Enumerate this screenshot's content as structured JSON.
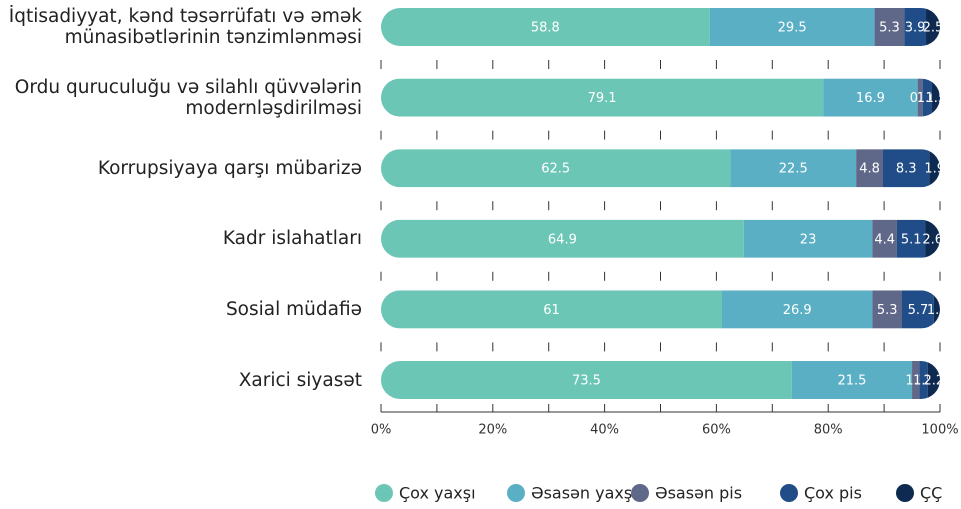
{
  "chart_data": {
    "type": "stacked-bar-horizontal",
    "categories": [
      "İqtisadiyyat, kənd təsərrüfatı və əmək münasibətlərinin tənzimlənməsi",
      "Ordu quruculuğu və silahlı qüvvələrin modernləşdirilməsi",
      "Korrupsiyaya qarşı mübarizə",
      "Kadr islahatları",
      "Sosial müdafiə",
      "Xarici siyasət"
    ],
    "series": [
      {
        "name": "Çox yaxşı",
        "color": "#6cc6b6",
        "values": [
          58.8,
          79.1,
          62.5,
          64.9,
          61,
          73.5
        ]
      },
      {
        "name": "Əsasən yaxşı",
        "color": "#5aafc5",
        "values": [
          29.5,
          16.9,
          22.5,
          23,
          26.9,
          21.5
        ]
      },
      {
        "name": "Əsasən pis",
        "color": "#5f6889",
        "values": [
          5.3,
          0.9,
          4.8,
          4.4,
          5.3,
          1.3
        ]
      },
      {
        "name": "Çox pis",
        "color": "#204d88",
        "values": [
          3.9,
          1.6,
          8.3,
          5.1,
          5.7,
          1.5
        ]
      },
      {
        "name": "ÇÇ",
        "color": "#0f2a51",
        "values": [
          2.5,
          1.5,
          1.9,
          2.6,
          1.2,
          2.2
        ]
      }
    ],
    "xlim": [
      0,
      100
    ],
    "xticks": [
      {
        "value": 0,
        "label": "0%"
      },
      {
        "value": 20,
        "label": "20%"
      },
      {
        "value": 40,
        "label": "40%"
      },
      {
        "value": 60,
        "label": "60%"
      },
      {
        "value": 80,
        "label": "80%"
      },
      {
        "value": 100,
        "label": "100%"
      }
    ],
    "minor_xticks": [
      10,
      30,
      50,
      70,
      90
    ],
    "legend": "bottom"
  }
}
